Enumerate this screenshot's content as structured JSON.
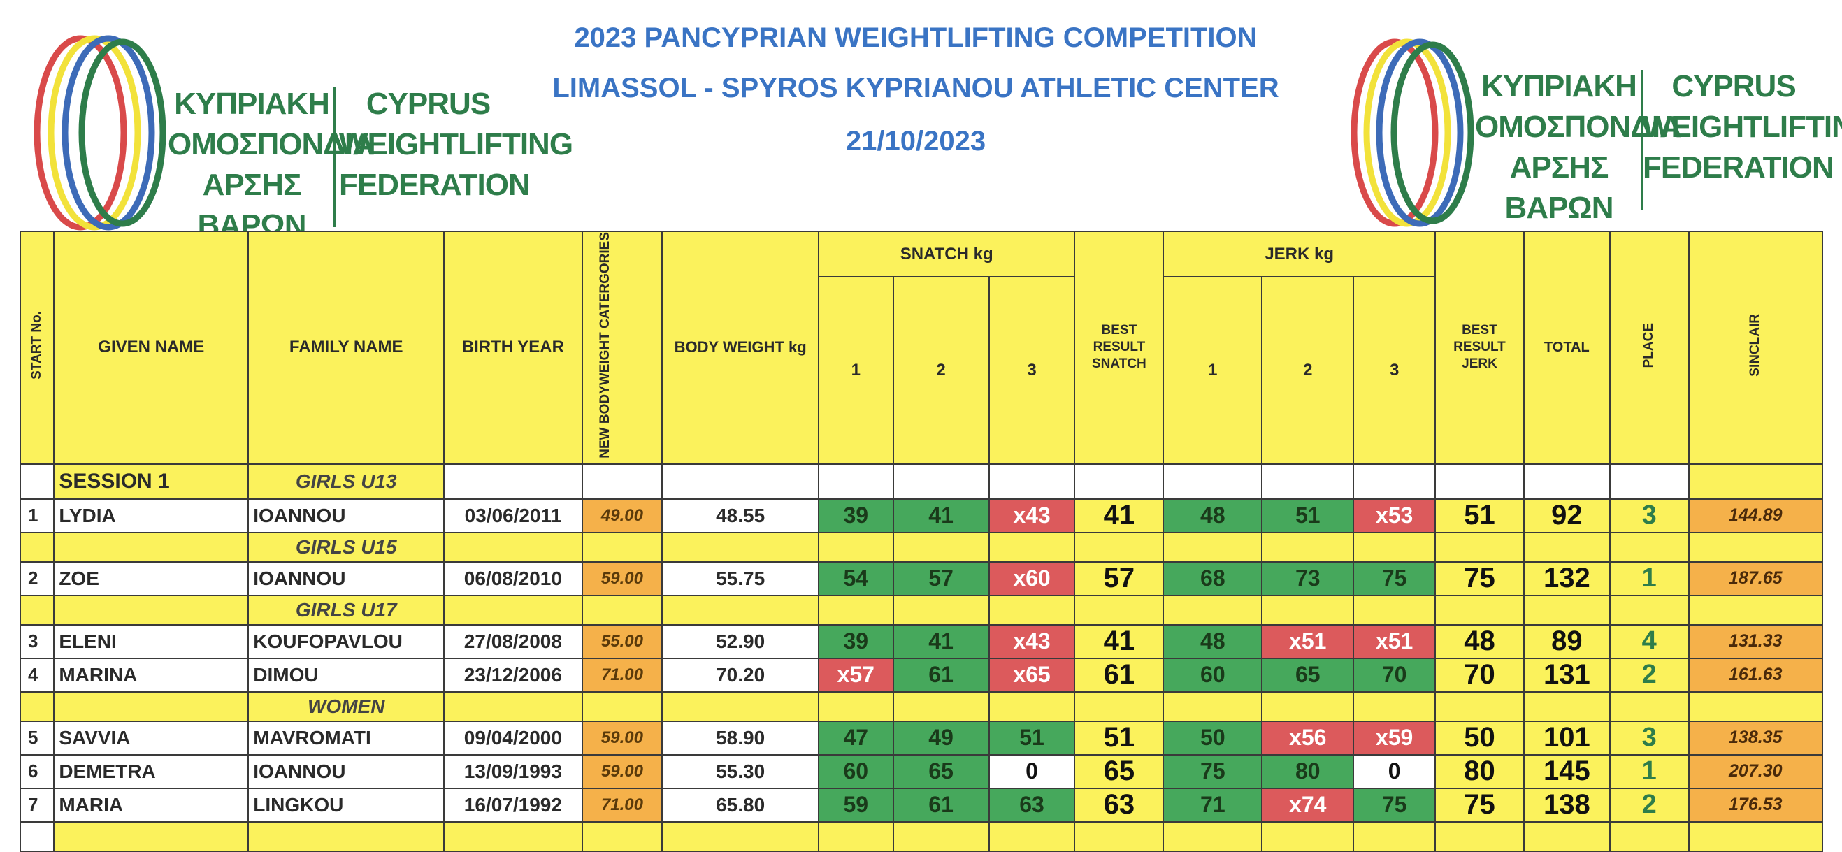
{
  "header": {
    "title_line1": "2023 PANCYPRIAN WEIGHTLIFTING COMPETITION",
    "title_line2": "LIMASSOL - SPYROS KYPRIANOU ATHLETIC CENTER",
    "date": "21/10/2023"
  },
  "federation": {
    "greek": [
      "ΚΥΠΡΙΑΚΗ",
      "ΟΜΟΣΠΟΝΔΙΑ",
      "ΑΡΣΗΣ ΒΑΡΩΝ"
    ],
    "english": [
      "CYPRUS",
      "WEIGHTLIFTING",
      "FEDERATION"
    ]
  },
  "colors": {
    "header_yellow": "#fbf25c",
    "good_lift_green": "#46a85c",
    "no_lift_red": "#dc5a5c",
    "category_orange": "#f5b14a",
    "title_blue": "#3a74c4",
    "federation_green": "#2e7d4a"
  },
  "columns": {
    "start_no": "START No.",
    "given_name": "GIVEN NAME",
    "family_name": "FAMILY NAME",
    "birth_year": "BIRTH YEAR",
    "new_bw_cat": "NEW BODYWEIGHT CATERGORIES",
    "body_weight": "BODY WEIGHT kg",
    "snatch_group": "SNATCH kg",
    "jerk_group": "JERK kg",
    "attempt1": "1",
    "attempt2": "2",
    "attempt3": "3",
    "best_snatch": "BEST RESULT SNATCH",
    "best_jerk": "BEST RESULT JERK",
    "total": "TOTAL",
    "place": "PLACE",
    "sinclair": "SINCLAIR"
  },
  "session_label": "SESSION 1",
  "groups": [
    {
      "category": "GIRLS U13",
      "athletes": [
        {
          "no": "1",
          "given": "LYDIA",
          "family": "IOANNOU",
          "birth": "03/06/2011",
          "cat": "49.00",
          "bw": "48.55",
          "sn": [
            {
              "v": "39",
              "s": "good"
            },
            {
              "v": "41",
              "s": "good"
            },
            {
              "v": "x43",
              "s": "fail"
            }
          ],
          "bs": "41",
          "cj": [
            {
              "v": "48",
              "s": "good"
            },
            {
              "v": "51",
              "s": "good"
            },
            {
              "v": "x53",
              "s": "fail"
            }
          ],
          "bj": "51",
          "total": "92",
          "place": "3",
          "sinclair": "144.89"
        }
      ]
    },
    {
      "category": "GIRLS U15",
      "athletes": [
        {
          "no": "2",
          "given": "ZOE",
          "family": "IOANNOU",
          "birth": "06/08/2010",
          "cat": "59.00",
          "bw": "55.75",
          "sn": [
            {
              "v": "54",
              "s": "good"
            },
            {
              "v": "57",
              "s": "good"
            },
            {
              "v": "x60",
              "s": "fail"
            }
          ],
          "bs": "57",
          "cj": [
            {
              "v": "68",
              "s": "good"
            },
            {
              "v": "73",
              "s": "good"
            },
            {
              "v": "75",
              "s": "good"
            }
          ],
          "bj": "75",
          "total": "132",
          "place": "1",
          "sinclair": "187.65"
        }
      ]
    },
    {
      "category": "GIRLS U17",
      "athletes": [
        {
          "no": "3",
          "given": "ELENI",
          "family": "KOUFOPAVLOU",
          "birth": "27/08/2008",
          "cat": "55.00",
          "bw": "52.90",
          "sn": [
            {
              "v": "39",
              "s": "good"
            },
            {
              "v": "41",
              "s": "good"
            },
            {
              "v": "x43",
              "s": "fail"
            }
          ],
          "bs": "41",
          "cj": [
            {
              "v": "48",
              "s": "good"
            },
            {
              "v": "x51",
              "s": "fail"
            },
            {
              "v": "x51",
              "s": "fail"
            }
          ],
          "bj": "48",
          "total": "89",
          "place": "4",
          "sinclair": "131.33"
        },
        {
          "no": "4",
          "given": "MARINA",
          "family": "DIMOU",
          "birth": "23/12/2006",
          "cat": "71.00",
          "bw": "70.20",
          "sn": [
            {
              "v": "x57",
              "s": "fail"
            },
            {
              "v": "61",
              "s": "good"
            },
            {
              "v": "x65",
              "s": "fail"
            }
          ],
          "bs": "61",
          "cj": [
            {
              "v": "60",
              "s": "good"
            },
            {
              "v": "65",
              "s": "good"
            },
            {
              "v": "70",
              "s": "good"
            }
          ],
          "bj": "70",
          "total": "131",
          "place": "2",
          "sinclair": "161.63"
        }
      ]
    },
    {
      "category": "WOMEN",
      "athletes": [
        {
          "no": "5",
          "given": "SAVVIA",
          "family": "MAVROMATI",
          "birth": "09/04/2000",
          "cat": "59.00",
          "bw": "58.90",
          "sn": [
            {
              "v": "47",
              "s": "good"
            },
            {
              "v": "49",
              "s": "good"
            },
            {
              "v": "51",
              "s": "good"
            }
          ],
          "bs": "51",
          "cj": [
            {
              "v": "50",
              "s": "good"
            },
            {
              "v": "x56",
              "s": "fail"
            },
            {
              "v": "x59",
              "s": "fail"
            }
          ],
          "bj": "50",
          "total": "101",
          "place": "3",
          "sinclair": "138.35"
        },
        {
          "no": "6",
          "given": "DEMETRA",
          "family": "IOANNOU",
          "birth": "13/09/1993",
          "cat": "59.00",
          "bw": "55.30",
          "sn": [
            {
              "v": "60",
              "s": "good"
            },
            {
              "v": "65",
              "s": "good"
            },
            {
              "v": "0",
              "s": "none"
            }
          ],
          "bs": "65",
          "cj": [
            {
              "v": "75",
              "s": "good"
            },
            {
              "v": "80",
              "s": "good"
            },
            {
              "v": "0",
              "s": "none"
            }
          ],
          "bj": "80",
          "total": "145",
          "place": "1",
          "sinclair": "207.30"
        },
        {
          "no": "7",
          "given": "MARIA",
          "family": "LINGKOU",
          "birth": "16/07/1992",
          "cat": "71.00",
          "bw": "65.80",
          "sn": [
            {
              "v": "59",
              "s": "good"
            },
            {
              "v": "61",
              "s": "good"
            },
            {
              "v": "63",
              "s": "good"
            }
          ],
          "bs": "63",
          "cj": [
            {
              "v": "71",
              "s": "good"
            },
            {
              "v": "x74",
              "s": "fail"
            },
            {
              "v": "75",
              "s": "good"
            }
          ],
          "bj": "75",
          "total": "138",
          "place": "2",
          "sinclair": "176.53"
        }
      ]
    }
  ]
}
